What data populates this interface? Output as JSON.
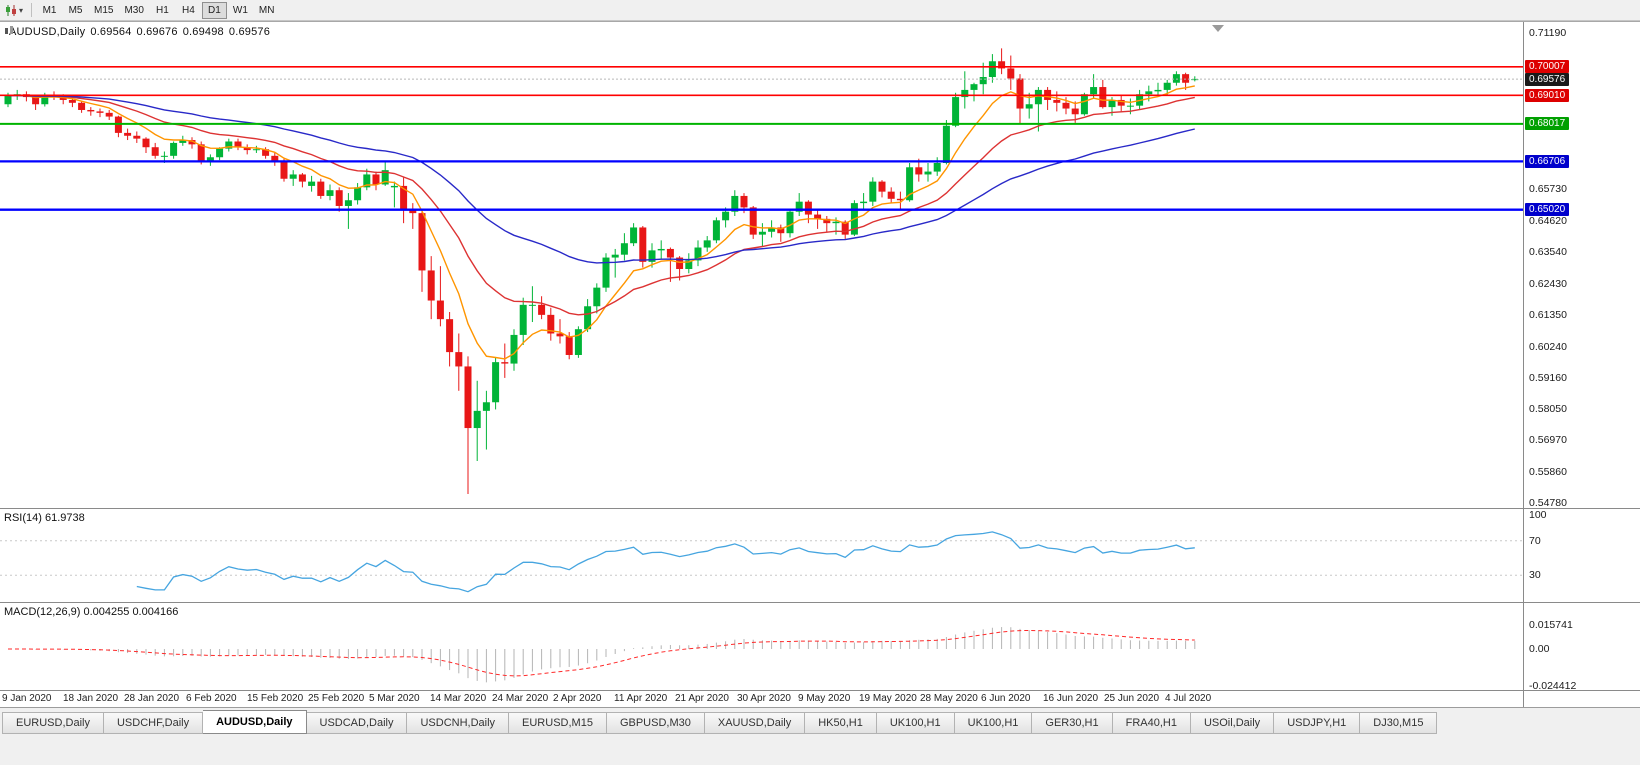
{
  "toolbar": {
    "timeframes": [
      "M1",
      "M5",
      "M15",
      "M30",
      "H1",
      "H4",
      "D1",
      "W1",
      "MN"
    ],
    "active_timeframe": "D1"
  },
  "chart": {
    "title": {
      "symbol": "AUDUSD,Daily",
      "open": "0.69564",
      "high": "0.69676",
      "low": "0.69498",
      "close": "0.69576"
    },
    "price_axis_labels": [
      "0.71190",
      "0.65730",
      "0.64620",
      "0.63540",
      "0.62430",
      "0.61350",
      "0.60240",
      "0.59160",
      "0.58050",
      "0.56970",
      "0.55860",
      "0.54780"
    ],
    "price_badges": [
      {
        "value": "0.70007",
        "color": "#dd0000"
      },
      {
        "value": "0.69576",
        "color": "#1a1a1a"
      },
      {
        "value": "0.69010",
        "color": "#dd0000"
      },
      {
        "value": "0.68017",
        "color": "#00a000"
      },
      {
        "value": "0.66706",
        "color": "#0000cc"
      },
      {
        "value": "0.65020",
        "color": "#0000cc"
      }
    ],
    "hlines": [
      {
        "price": 0.70007,
        "color": "#ff0000",
        "width": 1.6
      },
      {
        "price": 0.6901,
        "color": "#ff0000",
        "width": 1.6
      },
      {
        "price": 0.68017,
        "color": "#00b400",
        "width": 2
      },
      {
        "price": 0.66706,
        "color": "#0000ff",
        "width": 2.3
      },
      {
        "price": 0.6502,
        "color": "#0000ff",
        "width": 2.3
      }
    ],
    "current_price": 0.69576
  },
  "chart_data": {
    "type": "candlestick",
    "symbol": "AUDUSD",
    "period": "Daily",
    "ylim": [
      0.5461,
      0.7157
    ],
    "up_color": "#00b437",
    "down_color": "#e81717",
    "x_labels": [
      "9 Jan 2020",
      "18 Jan 2020",
      "28 Jan 2020",
      "6 Feb 2020",
      "15 Feb 2020",
      "25 Feb 2020",
      "5 Mar 2020",
      "14 Mar 2020",
      "24 Mar 2020",
      "2 Apr 2020",
      "11 Apr 2020",
      "21 Apr 2020",
      "30 Apr 2020",
      "9 May 2020",
      "19 May 2020",
      "28 May 2020",
      "6 Jun 2020",
      "16 Jun 2020",
      "25 Jun 2020",
      "4 Jul 2020"
    ],
    "overlays": [
      {
        "name": "ma-fast-orange",
        "period": 8,
        "color": "#ff9500"
      },
      {
        "name": "ma-medium-red",
        "period": 20,
        "color": "#dd3333"
      },
      {
        "name": "ma-slow-blue",
        "period": 45,
        "color": "#2929c8"
      }
    ],
    "ohlc": [
      [
        0.687,
        0.691,
        0.686,
        0.69
      ],
      [
        0.69,
        0.692,
        0.6885,
        0.6905
      ],
      [
        0.6905,
        0.6915,
        0.688,
        0.6895
      ],
      [
        0.6895,
        0.69,
        0.685,
        0.687
      ],
      [
        0.687,
        0.691,
        0.6862,
        0.6903
      ],
      [
        0.6903,
        0.6915,
        0.6885,
        0.6897
      ],
      [
        0.6897,
        0.6905,
        0.687,
        0.6885
      ],
      [
        0.6885,
        0.6895,
        0.686,
        0.6875
      ],
      [
        0.6875,
        0.688,
        0.684,
        0.685
      ],
      [
        0.685,
        0.686,
        0.683,
        0.6845
      ],
      [
        0.6845,
        0.6855,
        0.6825,
        0.684
      ],
      [
        0.684,
        0.685,
        0.6815,
        0.6827
      ],
      [
        0.6827,
        0.683,
        0.6755,
        0.677
      ],
      [
        0.677,
        0.6785,
        0.6745,
        0.676
      ],
      [
        0.676,
        0.6775,
        0.6735,
        0.675
      ],
      [
        0.675,
        0.6755,
        0.67,
        0.672
      ],
      [
        0.672,
        0.6735,
        0.668,
        0.669
      ],
      [
        0.669,
        0.6705,
        0.6665,
        0.669
      ],
      [
        0.669,
        0.674,
        0.668,
        0.6735
      ],
      [
        0.6735,
        0.676,
        0.6725,
        0.6745
      ],
      [
        0.6745,
        0.6755,
        0.6715,
        0.673
      ],
      [
        0.673,
        0.674,
        0.666,
        0.667
      ],
      [
        0.667,
        0.6695,
        0.6655,
        0.6685
      ],
      [
        0.6685,
        0.672,
        0.6675,
        0.6715
      ],
      [
        0.6715,
        0.675,
        0.6705,
        0.674
      ],
      [
        0.674,
        0.675,
        0.671,
        0.672
      ],
      [
        0.672,
        0.673,
        0.6695,
        0.671
      ],
      [
        0.671,
        0.6725,
        0.67,
        0.6713
      ],
      [
        0.6713,
        0.672,
        0.668,
        0.669
      ],
      [
        0.669,
        0.67,
        0.6655,
        0.667
      ],
      [
        0.667,
        0.668,
        0.66,
        0.661
      ],
      [
        0.661,
        0.664,
        0.6585,
        0.6625
      ],
      [
        0.6625,
        0.663,
        0.658,
        0.66
      ],
      [
        0.6585,
        0.662,
        0.6565,
        0.66
      ],
      [
        0.66,
        0.661,
        0.654,
        0.655
      ],
      [
        0.655,
        0.659,
        0.6535,
        0.657
      ],
      [
        0.657,
        0.658,
        0.6495,
        0.6515
      ],
      [
        0.6515,
        0.656,
        0.6435,
        0.6535
      ],
      [
        0.6535,
        0.6595,
        0.652,
        0.658
      ],
      [
        0.658,
        0.6645,
        0.657,
        0.6625
      ],
      [
        0.6625,
        0.6635,
        0.657,
        0.659
      ],
      [
        0.659,
        0.667,
        0.6585,
        0.664
      ],
      [
        0.658,
        0.66,
        0.651,
        0.6585
      ],
      [
        0.6585,
        0.6615,
        0.6455,
        0.65
      ],
      [
        0.65,
        0.6525,
        0.6435,
        0.649
      ],
      [
        0.649,
        0.6495,
        0.6215,
        0.629
      ],
      [
        0.629,
        0.634,
        0.612,
        0.6185
      ],
      [
        0.6185,
        0.6305,
        0.6095,
        0.612
      ],
      [
        0.612,
        0.6145,
        0.5955,
        0.6005
      ],
      [
        0.6005,
        0.607,
        0.587,
        0.5955
      ],
      [
        0.5955,
        0.599,
        0.551,
        0.574
      ],
      [
        0.574,
        0.5905,
        0.5625,
        0.58
      ],
      [
        0.58,
        0.587,
        0.5665,
        0.583
      ],
      [
        0.583,
        0.5985,
        0.5805,
        0.597
      ],
      [
        0.597,
        0.6035,
        0.5915,
        0.5965
      ],
      [
        0.5965,
        0.6085,
        0.594,
        0.6065
      ],
      [
        0.6065,
        0.6195,
        0.603,
        0.617
      ],
      [
        0.617,
        0.6235,
        0.611,
        0.617
      ],
      [
        0.617,
        0.62,
        0.612,
        0.6135
      ],
      [
        0.6135,
        0.616,
        0.6045,
        0.607
      ],
      [
        0.607,
        0.612,
        0.6035,
        0.606
      ],
      [
        0.606,
        0.6075,
        0.598,
        0.5995
      ],
      [
        0.5995,
        0.6095,
        0.5985,
        0.6085
      ],
      [
        0.6085,
        0.619,
        0.6075,
        0.6165
      ],
      [
        0.6165,
        0.6245,
        0.614,
        0.623
      ],
      [
        0.623,
        0.635,
        0.6215,
        0.6335
      ],
      [
        0.6335,
        0.6365,
        0.6265,
        0.6345
      ],
      [
        0.6345,
        0.642,
        0.6325,
        0.6385
      ],
      [
        0.6385,
        0.6455,
        0.6375,
        0.644
      ],
      [
        0.644,
        0.6445,
        0.63,
        0.632
      ],
      [
        0.632,
        0.6385,
        0.63,
        0.636
      ],
      [
        0.636,
        0.6395,
        0.633,
        0.6365
      ],
      [
        0.6365,
        0.637,
        0.625,
        0.6335
      ],
      [
        0.6335,
        0.634,
        0.6255,
        0.6295
      ],
      [
        0.6295,
        0.635,
        0.628,
        0.6325
      ],
      [
        0.6325,
        0.6395,
        0.6305,
        0.637
      ],
      [
        0.637,
        0.641,
        0.6355,
        0.6395
      ],
      [
        0.6395,
        0.6475,
        0.6385,
        0.6465
      ],
      [
        0.6465,
        0.651,
        0.644,
        0.6495
      ],
      [
        0.6495,
        0.657,
        0.648,
        0.655
      ],
      [
        0.655,
        0.656,
        0.649,
        0.651
      ],
      [
        0.651,
        0.6515,
        0.64,
        0.6415
      ],
      [
        0.6415,
        0.6455,
        0.6375,
        0.6425
      ],
      [
        0.6425,
        0.6465,
        0.6405,
        0.644
      ],
      [
        0.644,
        0.645,
        0.639,
        0.642
      ],
      [
        0.642,
        0.6505,
        0.6405,
        0.6495
      ],
      [
        0.6495,
        0.656,
        0.648,
        0.653
      ],
      [
        0.653,
        0.6535,
        0.6455,
        0.6485
      ],
      [
        0.6485,
        0.6505,
        0.6435,
        0.647
      ],
      [
        0.647,
        0.648,
        0.6425,
        0.6455
      ],
      [
        0.6455,
        0.6475,
        0.6415,
        0.646
      ],
      [
        0.646,
        0.6465,
        0.64,
        0.6415
      ],
      [
        0.6415,
        0.6535,
        0.641,
        0.6525
      ],
      [
        0.6525,
        0.656,
        0.6505,
        0.653
      ],
      [
        0.653,
        0.6615,
        0.6515,
        0.66
      ],
      [
        0.66,
        0.6605,
        0.6545,
        0.6565
      ],
      [
        0.6565,
        0.658,
        0.6525,
        0.654
      ],
      [
        0.654,
        0.6565,
        0.6505,
        0.6535
      ],
      [
        0.6535,
        0.6665,
        0.653,
        0.665
      ],
      [
        0.665,
        0.668,
        0.66,
        0.6625
      ],
      [
        0.6625,
        0.6665,
        0.66,
        0.6635
      ],
      [
        0.6635,
        0.6685,
        0.662,
        0.6665
      ],
      [
        0.6665,
        0.6815,
        0.666,
        0.6795
      ],
      [
        0.6795,
        0.691,
        0.679,
        0.6895
      ],
      [
        0.6895,
        0.6985,
        0.6855,
        0.692
      ],
      [
        0.692,
        0.6945,
        0.688,
        0.694
      ],
      [
        0.694,
        0.7015,
        0.6905,
        0.6965
      ],
      [
        0.6965,
        0.7045,
        0.6945,
        0.702
      ],
      [
        0.702,
        0.7065,
        0.6975,
        0.6995
      ],
      [
        0.6995,
        0.704,
        0.692,
        0.696
      ],
      [
        0.696,
        0.6975,
        0.68,
        0.6855
      ],
      [
        0.6855,
        0.691,
        0.682,
        0.687
      ],
      [
        0.687,
        0.693,
        0.6775,
        0.692
      ],
      [
        0.692,
        0.693,
        0.685,
        0.6885
      ],
      [
        0.6885,
        0.6915,
        0.6845,
        0.6875
      ],
      [
        0.6875,
        0.6895,
        0.6835,
        0.6855
      ],
      [
        0.6855,
        0.688,
        0.6805,
        0.6835
      ],
      [
        0.6835,
        0.691,
        0.683,
        0.6905
      ],
      [
        0.6905,
        0.6975,
        0.689,
        0.693
      ],
      [
        0.693,
        0.6955,
        0.6855,
        0.686
      ],
      [
        0.686,
        0.6895,
        0.683,
        0.6885
      ],
      [
        0.6885,
        0.69,
        0.6845,
        0.6865
      ],
      [
        0.6865,
        0.689,
        0.6835,
        0.6865
      ],
      [
        0.6865,
        0.692,
        0.685,
        0.6905
      ],
      [
        0.6905,
        0.6935,
        0.688,
        0.6915
      ],
      [
        0.6915,
        0.6945,
        0.69,
        0.692
      ],
      [
        0.692,
        0.6955,
        0.69,
        0.6945
      ],
      [
        0.6945,
        0.6985,
        0.6935,
        0.6975
      ],
      [
        0.6975,
        0.698,
        0.692,
        0.6945
      ],
      [
        0.69564,
        0.69676,
        0.69498,
        0.69576
      ]
    ]
  },
  "rsi": {
    "name": "RSI(14)",
    "value": "61.9738",
    "period": 14,
    "color": "#46a5e0",
    "levels": [
      {
        "label": "100",
        "v": 100
      },
      {
        "label": "70",
        "v": 70
      },
      {
        "label": "30",
        "v": 30
      }
    ]
  },
  "macd": {
    "name": "MACD(12,26,9)",
    "main": "0.004255",
    "signal": "0.004166",
    "fast": 12,
    "slow": 26,
    "signal_period": 9,
    "hist_color": "#b4b4b4",
    "signal_color": "#ff2a2a",
    "axis": [
      {
        "label": "0.015741",
        "v": 0.015741
      },
      {
        "label": "0.00",
        "v": 0
      },
      {
        "label": "-0.024412",
        "v": -0.024412
      }
    ]
  },
  "tabs": {
    "items": [
      "EURUSD,Daily",
      "USDCHF,Daily",
      "AUDUSD,Daily",
      "USDCAD,Daily",
      "USDCNH,Daily",
      "EURUSD,M15",
      "GBPUSD,M30",
      "XAUUSD,Daily",
      "HK50,H1",
      "UK100,H1",
      "UK100,H1",
      "GER30,H1",
      "FRA40,H1",
      "USOil,Daily",
      "USDJPY,H1",
      "DJ30,M15"
    ],
    "active_index": 2
  }
}
